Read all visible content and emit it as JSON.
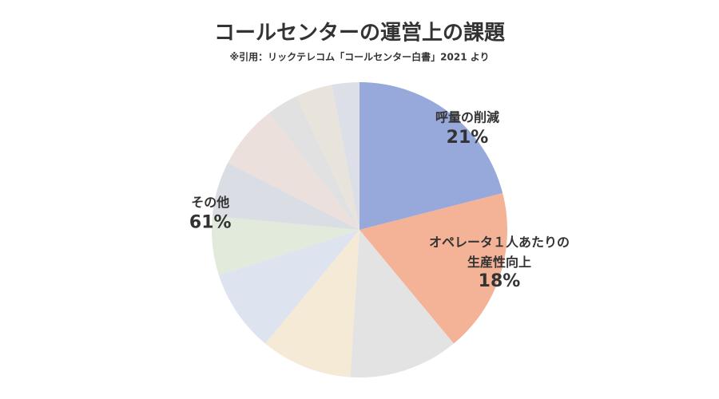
{
  "chart_data": {
    "type": "pie",
    "title": "コールセンターの運営上の課題",
    "subtitle": "※引用：リックテレコム「コールセンター白書」2021 より",
    "categories": [
      "呼量の削減",
      "オペレータ１人あたりの\n生産性向上",
      null,
      null,
      null,
      null,
      null,
      null,
      null,
      null,
      null
    ],
    "values": [
      21,
      18,
      12,
      10,
      9,
      6.5,
      6,
      7,
      3.5,
      4,
      3
    ],
    "value_labels": [
      "21%",
      "18%",
      null,
      null,
      null,
      null,
      null,
      null,
      null,
      null,
      null
    ],
    "colors": [
      "#97a8da",
      "#f4b296",
      "#e3e3e3",
      "#f5ead5",
      "#dde4ef",
      "#e1eadb",
      "#dadde3",
      "#ebe0dc",
      "#e1e1e1",
      "#e9e4db",
      "#dcdfe7"
    ],
    "other_group": {
      "label": "その他",
      "value": 61,
      "value_label": "61%"
    }
  }
}
